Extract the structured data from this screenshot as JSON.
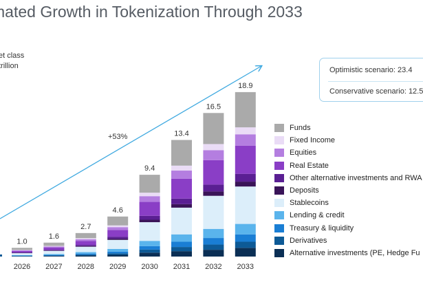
{
  "title": "mated Growth in Tokenization Through 2033",
  "unit_lines": [
    "et class",
    "trillion"
  ],
  "scenarios": [
    {
      "label": "Optimistic scenario: 23.4"
    },
    {
      "label": "Conservative scenario: 12.5"
    }
  ],
  "annotation": "+53%",
  "colors": {
    "arrow": "#3fa9e0",
    "scenario_border": "#9fd0ec"
  },
  "chart_data": {
    "type": "bar",
    "stacked": true,
    "title": "",
    "xlabel": "",
    "ylabel": "",
    "ylim": [
      0,
      20
    ],
    "categories": [
      "2026",
      "2027",
      "2028",
      "2029",
      "2030",
      "2031",
      "2032",
      "2033"
    ],
    "totals": [
      "1.0",
      "1.6",
      "2.7",
      "4.6",
      "9.4",
      "13.4",
      "16.5",
      "18.9"
    ],
    "series": [
      {
        "name": "Alternative investments (PE, Hedge Fu",
        "color": "#0b2f55",
        "values": [
          0.04,
          0.07,
          0.12,
          0.2,
          0.45,
          0.62,
          0.78,
          1.0
        ]
      },
      {
        "name": "Derivatives",
        "color": "#0d5a96",
        "values": [
          0.03,
          0.05,
          0.1,
          0.17,
          0.35,
          0.48,
          0.6,
          0.7
        ]
      },
      {
        "name": "Treasury & liquidity",
        "color": "#1a7ed4",
        "values": [
          0.04,
          0.07,
          0.12,
          0.2,
          0.4,
          0.6,
          0.75,
          0.85
        ]
      },
      {
        "name": "Lending & credit",
        "color": "#5ab4ec",
        "values": [
          0.06,
          0.1,
          0.17,
          0.3,
          0.6,
          0.85,
          1.05,
          1.2
        ]
      },
      {
        "name": "Stablecoins",
        "color": "#dceefa",
        "values": [
          0.23,
          0.36,
          0.62,
          1.05,
          2.15,
          3.07,
          3.8,
          4.3
        ]
      },
      {
        "name": "Deposits",
        "color": "#3a1458",
        "values": [
          0.03,
          0.05,
          0.08,
          0.14,
          0.28,
          0.4,
          0.5,
          0.56
        ]
      },
      {
        "name": "Other alternative investments and RWA",
        "color": "#5a1f93",
        "values": [
          0.05,
          0.08,
          0.13,
          0.22,
          0.45,
          0.64,
          0.79,
          0.9
        ]
      },
      {
        "name": "Real Estate",
        "color": "#8a3ec6",
        "values": [
          0.17,
          0.27,
          0.46,
          0.78,
          1.6,
          2.28,
          2.81,
          3.22
        ]
      },
      {
        "name": "Equities",
        "color": "#b47ee0",
        "values": [
          0.07,
          0.11,
          0.19,
          0.32,
          0.66,
          0.94,
          1.15,
          1.32
        ]
      },
      {
        "name": "Fixed Income",
        "color": "#eadcf6",
        "values": [
          0.04,
          0.07,
          0.12,
          0.2,
          0.4,
          0.57,
          0.7,
          0.8
        ]
      },
      {
        "name": "Funds",
        "color": "#aaaaaa",
        "values": [
          0.24,
          0.37,
          0.59,
          1.02,
          2.06,
          2.95,
          3.57,
          4.05
        ]
      }
    ]
  }
}
